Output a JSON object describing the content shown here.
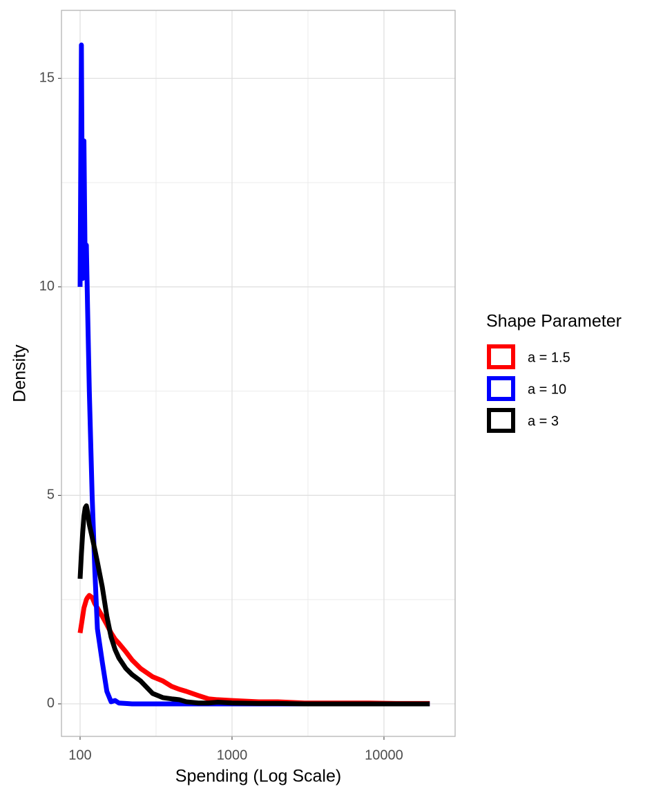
{
  "chart_data": {
    "type": "line",
    "x_label": "Spending (Log Scale)",
    "y_label": "Density",
    "x_log": true,
    "grid": true,
    "legend_title": "Shape Parameter",
    "legend_position": "right",
    "x": [
      100,
      102,
      104,
      106,
      108,
      110,
      112,
      115,
      120,
      125,
      130,
      140,
      150,
      160,
      170,
      180,
      200,
      220,
      250,
      300,
      350,
      400,
      450,
      500,
      600,
      700,
      800,
      1000,
      1500,
      2000,
      3000,
      5000,
      8000,
      12000,
      20000
    ],
    "series": [
      {
        "name": "a = 1.5",
        "color": "#ff0000",
        "values": [
          1.7,
          1.9,
          2.1,
          2.3,
          2.4,
          2.5,
          2.55,
          2.6,
          2.55,
          2.4,
          2.3,
          2.1,
          1.9,
          1.7,
          1.55,
          1.45,
          1.25,
          1.05,
          0.85,
          0.65,
          0.55,
          0.42,
          0.35,
          0.3,
          0.2,
          0.12,
          0.1,
          0.08,
          0.05,
          0.05,
          0.02,
          0.02,
          0.02,
          0.01,
          0.01
        ]
      },
      {
        "name": "a = 10",
        "color": "#0000ff",
        "values": [
          10,
          15.8,
          10.2,
          13.5,
          10.5,
          11,
          9.5,
          7.5,
          5,
          3.2,
          1.8,
          1,
          0.3,
          0.05,
          0.08,
          0.02,
          0.01,
          0,
          0,
          0,
          0,
          0,
          0,
          0,
          0,
          0,
          0,
          0,
          0,
          0,
          0,
          0,
          0,
          0,
          0
        ]
      },
      {
        "name": "a = 3",
        "color": "#000000",
        "values": [
          3,
          3.6,
          4.1,
          4.5,
          4.7,
          4.75,
          4.6,
          4.3,
          4,
          3.7,
          3.4,
          2.8,
          2.1,
          1.6,
          1.3,
          1.1,
          0.85,
          0.7,
          0.55,
          0.25,
          0.15,
          0.12,
          0.1,
          0.05,
          0.02,
          0.02,
          0.04,
          0.02,
          0.01,
          0.01,
          0,
          0,
          0,
          0,
          0
        ]
      }
    ],
    "xlim": [
      75.4,
      29400
    ],
    "xticks": [
      100,
      1000,
      10000
    ],
    "ylim": [
      -0.78,
      16.63
    ],
    "yticks": [
      0,
      5,
      10,
      15
    ]
  }
}
